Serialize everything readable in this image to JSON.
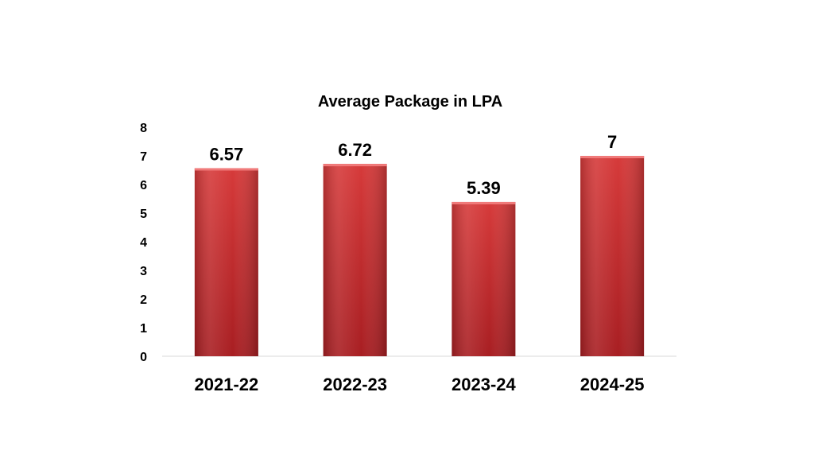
{
  "chart_data": {
    "type": "bar",
    "title": "Average Package in LPA",
    "categories": [
      "2021-22",
      "2022-23",
      "2023-24",
      "2024-25"
    ],
    "values": [
      6.57,
      6.72,
      5.39,
      7
    ],
    "value_labels": [
      "6.57",
      "6.72",
      "5.39",
      "7"
    ],
    "xlabel": "",
    "ylabel": "",
    "ylim": [
      0,
      8
    ],
    "yticks": [
      0,
      1,
      2,
      3,
      4,
      5,
      6,
      7,
      8
    ],
    "grid": false,
    "legend": "none",
    "bar_color": "#d63a3a",
    "bar_color_dark": "#a81e22"
  }
}
